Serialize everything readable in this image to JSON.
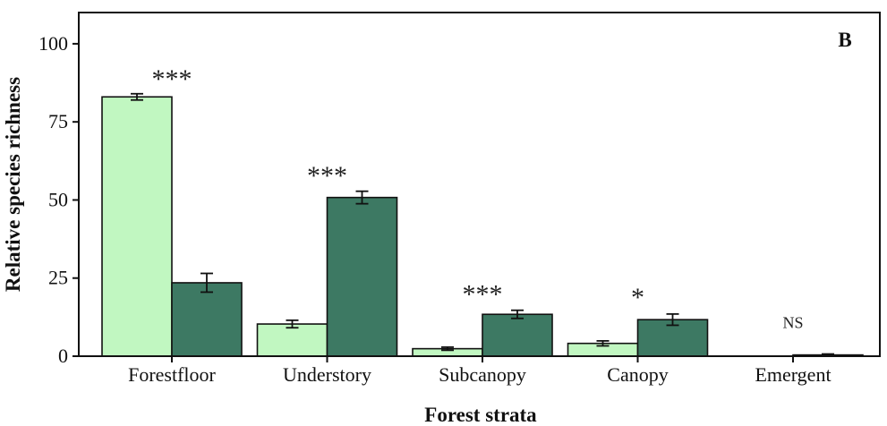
{
  "chart_data": {
    "type": "bar",
    "panel_label": "B",
    "xlabel": "Forest strata",
    "ylabel": "Relative species richness",
    "ylim": [
      0,
      110
    ],
    "yticks": [
      0,
      25,
      50,
      75,
      100
    ],
    "categories": [
      "Forestfloor",
      "Understory",
      "Subcanopy",
      "Canopy",
      "Emergent"
    ],
    "series": [
      {
        "color": "#c1f7c1",
        "values": [
          83,
          10.3,
          2.4,
          4.1,
          0
        ],
        "errors": [
          1.0,
          1.2,
          0.5,
          0.8,
          0
        ]
      },
      {
        "color": "#3d7963",
        "values": [
          23.5,
          50.8,
          13.4,
          11.7,
          0.4
        ],
        "errors": [
          3.0,
          2.0,
          1.3,
          1.8,
          0.3
        ]
      }
    ],
    "significance": [
      "***",
      "***",
      "***",
      "*",
      "NS"
    ],
    "significance_y": [
      90,
      59,
      21,
      20,
      9
    ],
    "grid": false,
    "legend": "none"
  }
}
